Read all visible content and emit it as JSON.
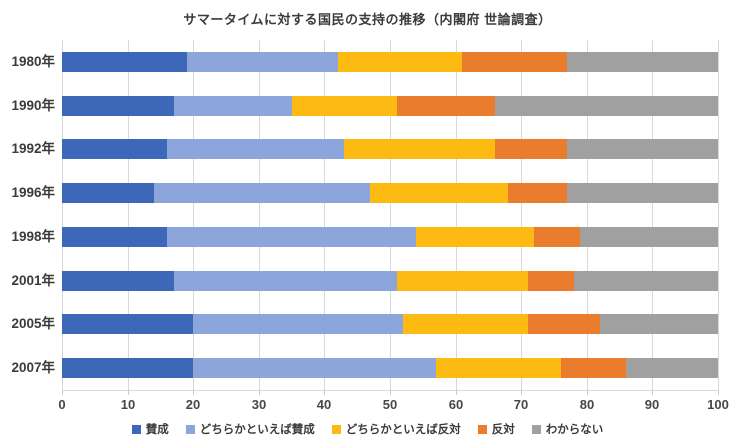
{
  "title": "サマータイムに対する国民の支持の推移（内閣府 世論調査）",
  "chart_data": {
    "type": "bar",
    "orientation": "horizontal",
    "stacked": true,
    "title": "サマータイムに対する国民の支持の推移（内閣府 世論調査）",
    "categories": [
      "1980年",
      "1990年",
      "1992年",
      "1996年",
      "1998年",
      "2001年",
      "2005年",
      "2007年"
    ],
    "series": [
      {
        "key": "approve",
        "name": "賛成",
        "color": "#3d68b9",
        "values": [
          19,
          17,
          16,
          14,
          16,
          17,
          20,
          20
        ]
      },
      {
        "key": "lean-approve",
        "name": "どちらかといえば賛成",
        "color": "#8ca6dc",
        "values": [
          23,
          18,
          27,
          33,
          38,
          34,
          32,
          37
        ]
      },
      {
        "key": "lean-oppose",
        "name": "どちらかといえば反対",
        "color": "#fcba12",
        "values": [
          19,
          16,
          23,
          21,
          18,
          20,
          19,
          19
        ]
      },
      {
        "key": "oppose",
        "name": "反対",
        "color": "#e97c2d",
        "values": [
          16,
          15,
          11,
          9,
          7,
          7,
          11,
          10
        ]
      },
      {
        "key": "dont-know",
        "name": "わからない",
        "color": "#a0a0a0",
        "values": [
          23,
          34,
          23,
          23,
          21,
          22,
          18,
          14
        ]
      }
    ],
    "x_axis": {
      "min": 0,
      "max": 100,
      "tick_interval": 10,
      "tick_labels": [
        "0",
        "10",
        "20",
        "30",
        "40",
        "50",
        "60",
        "70",
        "80",
        "90",
        "100"
      ]
    },
    "legend_position": "bottom",
    "grid": true,
    "colors": {
      "gridline": "#d9d9d9",
      "axis_text": "#474747",
      "title_text": "#3b3b3b",
      "background": "#ffffff"
    }
  }
}
